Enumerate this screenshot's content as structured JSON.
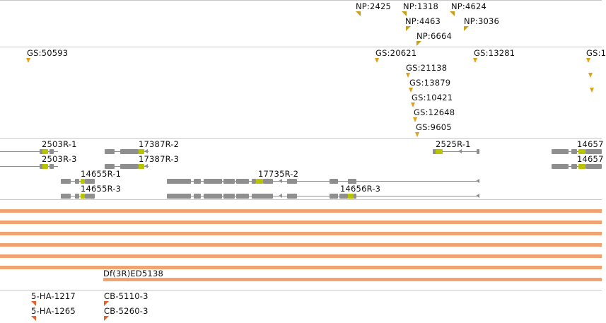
{
  "colors": {
    "np_marker": "#c8a018",
    "gs_marker": "#e0a21c",
    "gene_structure": "#8f8f8f",
    "gene_highlight": "#b8c400",
    "deficiency_bar": "#f0a472",
    "ha_marker": "#e8602a",
    "track_border": "#c8c8c8"
  },
  "np_track": {
    "labels": [
      "NP:2425",
      "NP:1318",
      "NP:4624",
      "NP:4463",
      "NP:3036",
      "NP:6664"
    ]
  },
  "gs_track": {
    "labels": [
      "GS:50593",
      "GS:20621",
      "GS:13281",
      "GS:1",
      "GS:21138",
      "GS:13879",
      "GS:10421",
      "GS:12648",
      "GS:9605"
    ]
  },
  "gene_track": {
    "labels": [
      "2503R-1",
      "17387R-2",
      "2525R-1",
      "14657",
      "2503R-3",
      "17387R-3",
      "14657",
      "14655R-1",
      "17735R-2",
      "14655R-3",
      "14656R-3"
    ]
  },
  "deficiency_track": {
    "labels": [
      "Df(3R)ED5138"
    ]
  },
  "stock_track": {
    "labels": [
      "5-HA-1217",
      "CB-5110-3",
      "5-HA-1265",
      "CB-5260-3"
    ]
  }
}
